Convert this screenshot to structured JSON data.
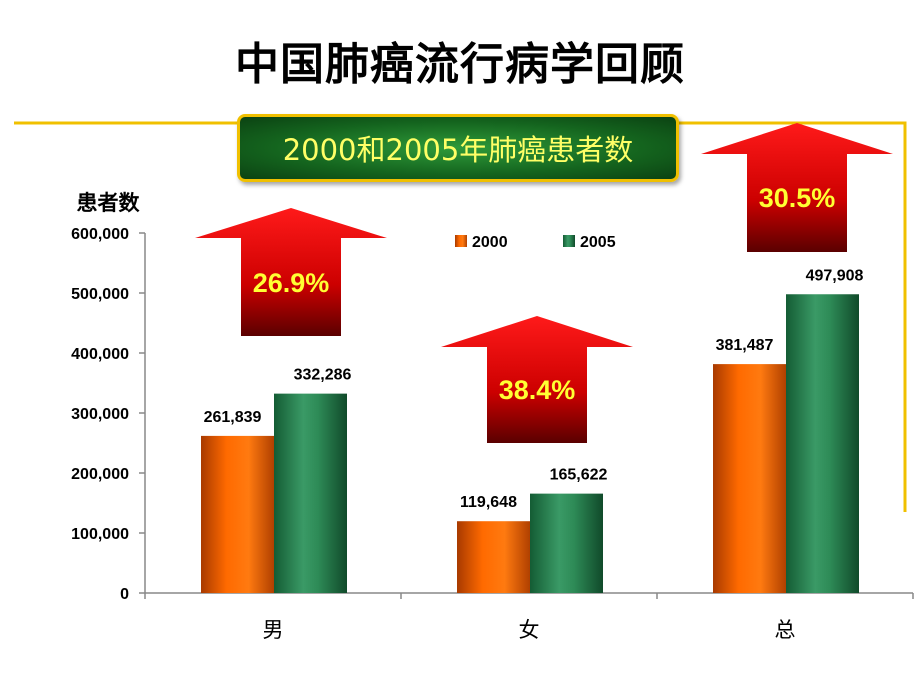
{
  "title": "中国肺癌流行病学回顾",
  "subtitle": "2000和2005年肺癌患者数",
  "colors": {
    "series_2000": "#ff6a00",
    "series_2005": "#2e8b57",
    "arrow": "#d40000",
    "bracket": "#f0c000"
  },
  "chart_data": {
    "type": "bar",
    "ylabel": "患者数",
    "ylim": [
      0,
      600000
    ],
    "yticks": [
      "0",
      "100,000",
      "200,000",
      "300,000",
      "400,000",
      "500,000",
      "600,000"
    ],
    "categories": [
      "男",
      "女",
      "总"
    ],
    "legend_position": "top-center",
    "series": [
      {
        "name": "2000",
        "values": [
          261839,
          119648,
          381487
        ],
        "labels": [
          "261,839",
          "119,648",
          "381,487"
        ]
      },
      {
        "name": "2005",
        "values": [
          332286,
          165622,
          497908
        ],
        "labels": [
          "332,286",
          "165,622",
          "497,908"
        ]
      }
    ],
    "annotations": [
      {
        "category": "男",
        "text": "26.9%"
      },
      {
        "category": "女",
        "text": "38.4%"
      },
      {
        "category": "总",
        "text": "30.5%"
      }
    ]
  }
}
